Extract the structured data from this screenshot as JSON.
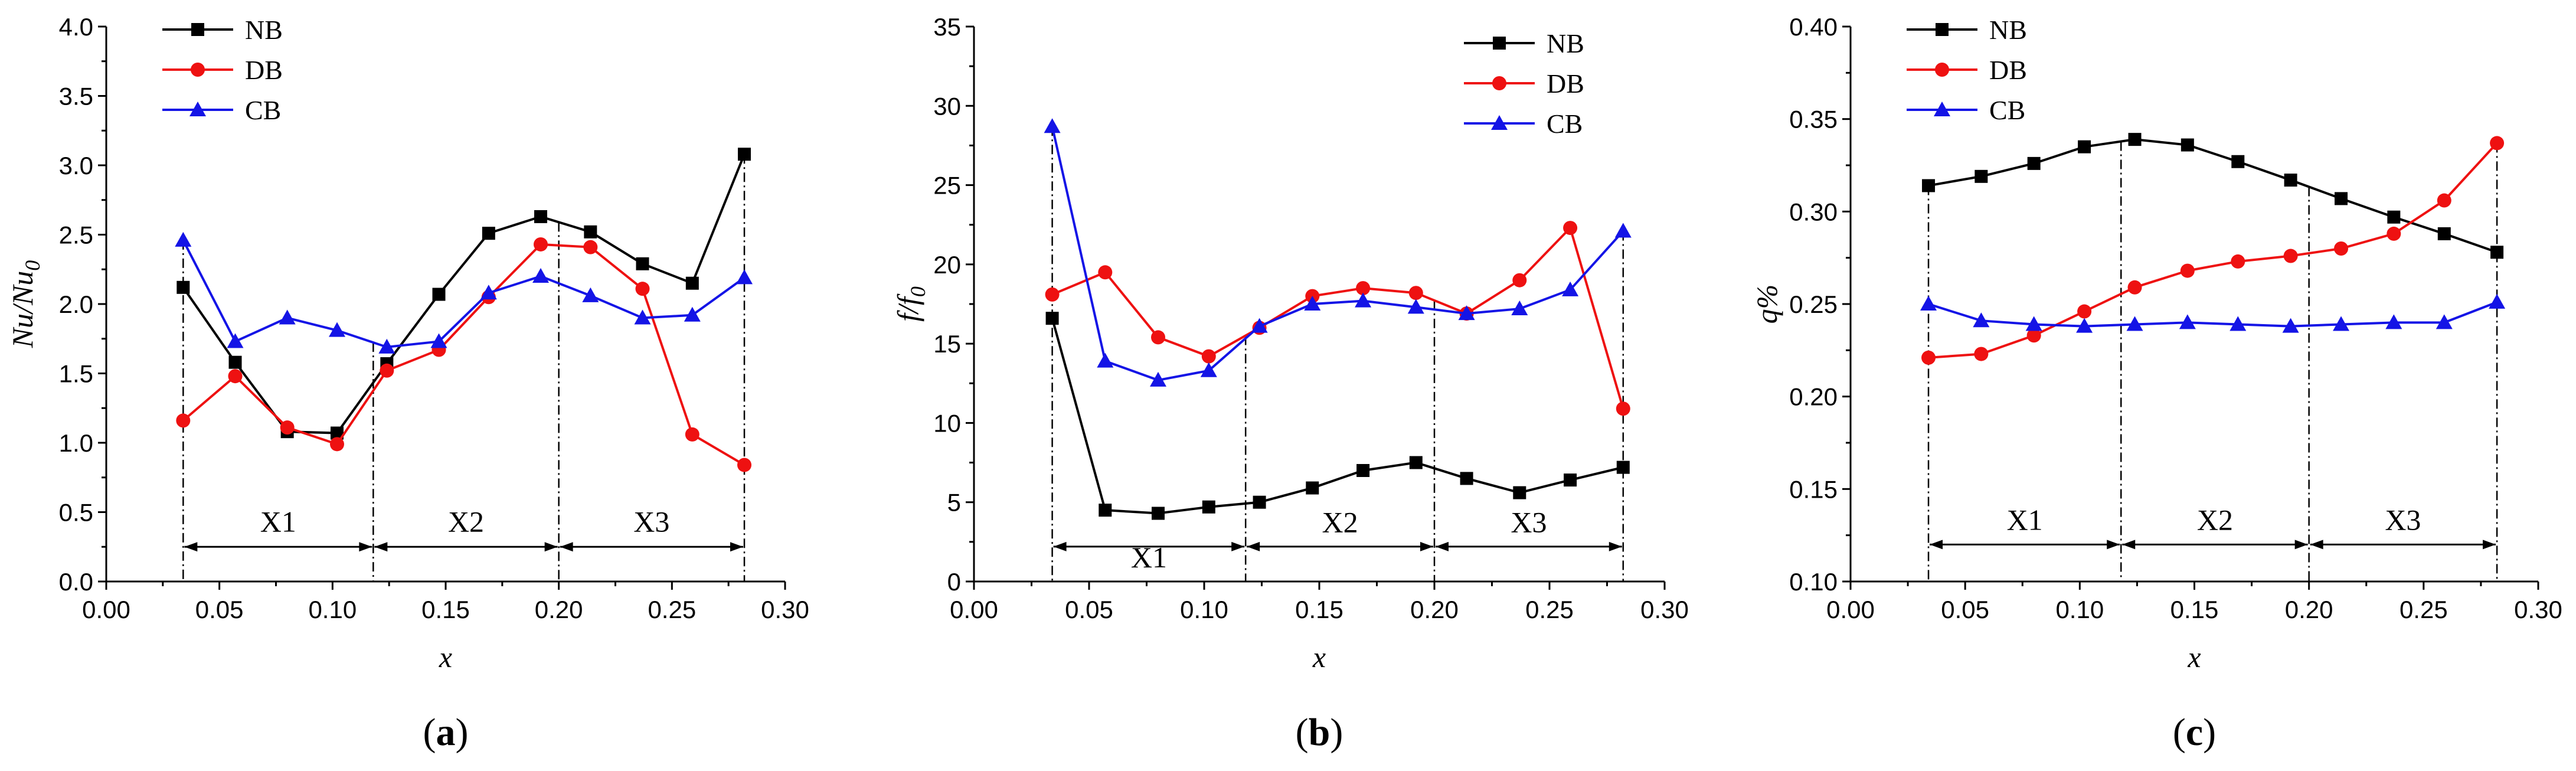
{
  "colors": {
    "NB": "#000000",
    "DB": "#ee1111",
    "CB": "#1414e6"
  },
  "chart_data": [
    {
      "type": "line",
      "panel": "(a)",
      "panel_letter": "a",
      "xlabel": "x",
      "ylabel_main": "Nu/Nu",
      "ylabel_sub": "0",
      "xlim": [
        0.0,
        0.3
      ],
      "ylim": [
        0.0,
        4.0
      ],
      "xticks": [
        "0.00",
        "0.05",
        "0.10",
        "0.15",
        "0.20",
        "0.25",
        "0.30"
      ],
      "xtick_values": [
        0.0,
        0.05,
        0.1,
        0.15,
        0.2,
        0.25,
        0.3
      ],
      "yticks": [
        "0.0",
        "0.5",
        "1.0",
        "1.5",
        "2.0",
        "2.5",
        "3.0",
        "3.5",
        "4.0"
      ],
      "ytick_values": [
        0.0,
        0.5,
        1.0,
        1.5,
        2.0,
        2.5,
        3.0,
        3.5,
        4.0
      ],
      "x": [
        0.034,
        0.057,
        0.08,
        0.102,
        0.124,
        0.147,
        0.169,
        0.192,
        0.214,
        0.237,
        0.259,
        0.282
      ],
      "series": [
        {
          "name": "NB",
          "marker": "square",
          "values": [
            2.12,
            1.58,
            1.08,
            1.07,
            1.57,
            2.07,
            2.51,
            2.63,
            2.52,
            2.29,
            2.15,
            3.08
          ]
        },
        {
          "name": "DB",
          "marker": "circle",
          "values": [
            1.16,
            1.48,
            1.11,
            0.99,
            1.52,
            1.67,
            2.05,
            2.43,
            2.41,
            2.11,
            1.06,
            0.84
          ]
        },
        {
          "name": "CB",
          "marker": "triangle",
          "values": [
            2.46,
            1.73,
            1.9,
            1.81,
            1.69,
            1.73,
            2.08,
            2.2,
            2.06,
            1.9,
            1.92,
            2.19
          ]
        }
      ],
      "legend_position": "top-left",
      "region_lines": [
        0.034,
        0.118,
        0.2,
        0.282
      ],
      "region_arrow_y": 0.25,
      "regions": [
        "X1",
        "X2",
        "X3"
      ],
      "region_label_y": 0.36
    },
    {
      "type": "line",
      "panel": "(b)",
      "panel_letter": "b",
      "xlabel": "x",
      "ylabel_main": "f/f",
      "ylabel_sub": "0",
      "xlim": [
        0.0,
        0.3
      ],
      "ylim": [
        0,
        35
      ],
      "xticks": [
        "0.00",
        "0.05",
        "0.10",
        "0.15",
        "0.20",
        "0.25",
        "0.30"
      ],
      "xtick_values": [
        0.0,
        0.05,
        0.1,
        0.15,
        0.2,
        0.25,
        0.3
      ],
      "yticks": [
        "0",
        "5",
        "10",
        "15",
        "20",
        "25",
        "30",
        "35"
      ],
      "ytick_values": [
        0,
        5,
        10,
        15,
        20,
        25,
        30,
        35
      ],
      "x": [
        0.034,
        0.057,
        0.08,
        0.102,
        0.124,
        0.147,
        0.169,
        0.192,
        0.214,
        0.237,
        0.259,
        0.282
      ],
      "series": [
        {
          "name": "NB",
          "marker": "square",
          "values": [
            16.6,
            4.5,
            4.3,
            4.7,
            5.0,
            5.9,
            7.0,
            7.5,
            6.5,
            5.6,
            6.4,
            7.2
          ]
        },
        {
          "name": "DB",
          "marker": "circle",
          "values": [
            18.1,
            19.5,
            15.4,
            14.2,
            16.0,
            18.0,
            18.5,
            18.2,
            16.9,
            19.0,
            22.3,
            10.9
          ]
        },
        {
          "name": "CB",
          "marker": "triangle",
          "values": [
            28.7,
            13.9,
            12.7,
            13.3,
            16.1,
            17.5,
            17.7,
            17.3,
            16.9,
            17.2,
            18.4,
            22.1
          ]
        }
      ],
      "legend_position": "top-right",
      "region_lines": [
        0.034,
        0.118,
        0.2,
        0.282
      ],
      "region_arrow_y": 2.2,
      "regions": [
        "X1",
        "X2",
        "X3"
      ],
      "region_label_y": [
        0.9,
        3.1,
        3.1
      ]
    },
    {
      "type": "line",
      "panel": "(c)",
      "panel_letter": "c",
      "xlabel": "x",
      "ylabel_main": "q%",
      "ylabel_sub": "",
      "xlim": [
        0.0,
        0.3
      ],
      "ylim": [
        0.1,
        0.4
      ],
      "xticks": [
        "0.00",
        "0.05",
        "0.10",
        "0.15",
        "0.20",
        "0.25",
        "0.30"
      ],
      "xtick_values": [
        0.0,
        0.05,
        0.1,
        0.15,
        0.2,
        0.25,
        0.3
      ],
      "yticks": [
        "0.10",
        "0.15",
        "0.20",
        "0.25",
        "0.30",
        "0.35",
        "0.40"
      ],
      "ytick_values": [
        0.1,
        0.15,
        0.2,
        0.25,
        0.3,
        0.35,
        0.4
      ],
      "x": [
        0.034,
        0.057,
        0.08,
        0.102,
        0.124,
        0.147,
        0.169,
        0.192,
        0.214,
        0.237,
        0.259,
        0.282
      ],
      "series": [
        {
          "name": "NB",
          "marker": "square",
          "values": [
            0.314,
            0.319,
            0.326,
            0.335,
            0.339,
            0.336,
            0.327,
            0.317,
            0.307,
            0.297,
            0.288,
            0.278
          ]
        },
        {
          "name": "DB",
          "marker": "circle",
          "values": [
            0.221,
            0.223,
            0.233,
            0.246,
            0.259,
            0.268,
            0.273,
            0.276,
            0.28,
            0.288,
            0.306,
            0.337
          ]
        },
        {
          "name": "CB",
          "marker": "triangle",
          "values": [
            0.25,
            0.241,
            0.239,
            0.238,
            0.239,
            0.24,
            0.239,
            0.238,
            0.239,
            0.24,
            0.24,
            0.251
          ]
        }
      ],
      "legend_position": "top-left",
      "region_lines": [
        0.034,
        0.118,
        0.2,
        0.282
      ],
      "region_arrow_y": 0.12,
      "regions": [
        "X1",
        "X2",
        "X3"
      ],
      "region_label_y": 0.128
    }
  ]
}
